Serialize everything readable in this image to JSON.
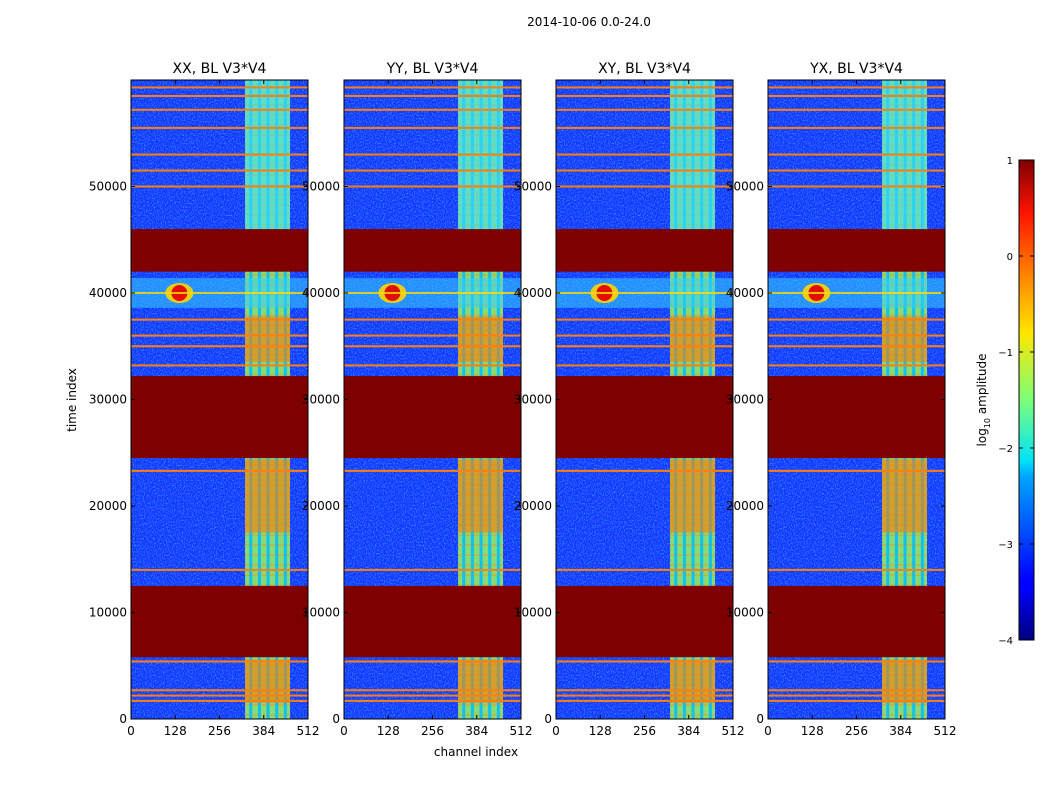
{
  "chart_data": {
    "type": "heatmap",
    "title": "2014-10-06 0.0-24.0",
    "xlabel": "channel index",
    "ylabel": "time index",
    "xlim": [
      0,
      512
    ],
    "ylim": [
      0,
      60000
    ],
    "x_ticks": [
      "0",
      "128",
      "256",
      "384",
      "512"
    ],
    "y_ticks": [
      "0",
      "10000",
      "20000",
      "30000",
      "40000",
      "50000"
    ],
    "panels": [
      {
        "title": "XX, BL V3*V4",
        "pol": "XX"
      },
      {
        "title": "YY, BL V3*V4",
        "pol": "YY"
      },
      {
        "title": "XY, BL V3*V4",
        "pol": "XY"
      },
      {
        "title": "YX, BL V3*V4",
        "pol": "YX"
      }
    ],
    "colorbar": {
      "label": "log10 amplitude",
      "label_base": "log",
      "label_sub": "10",
      "label_rest": " amplitude",
      "range": [
        -4,
        1
      ],
      "ticks": [
        "1",
        "0",
        "−1",
        "−2",
        "−3",
        "−4"
      ],
      "colormap": "jet"
    },
    "flagged_time_ranges": [
      [
        5800,
        12500
      ],
      [
        24500,
        32200
      ],
      [
        42000,
        46000
      ]
    ],
    "flagged_time_lines": [
      1700,
      2200,
      2700,
      5400,
      14000,
      23300,
      33200,
      35000,
      36000,
      37500,
      50000,
      51500,
      53000,
      55500,
      57200,
      58500,
      59300
    ],
    "rfi_channel_band": [
      330,
      460
    ],
    "rfi_channel_stripes": [
      345,
      370,
      395,
      420,
      445
    ],
    "rfi_burst": {
      "channel": 140,
      "time": 40000
    }
  }
}
